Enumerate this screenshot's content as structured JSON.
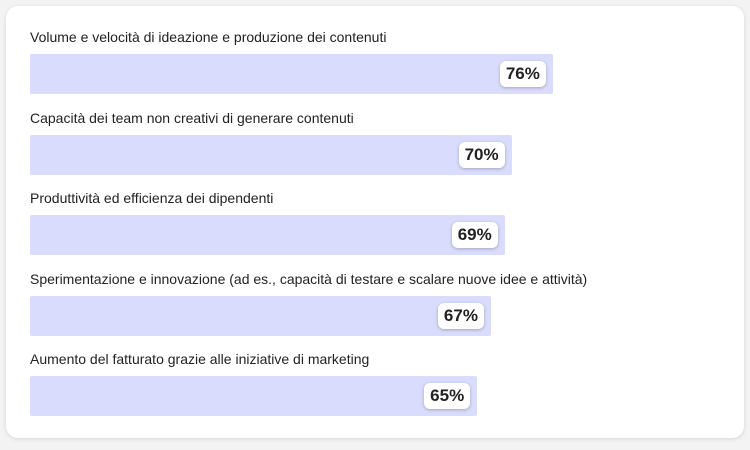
{
  "chart_data": {
    "type": "bar",
    "orientation": "horizontal",
    "categories": [
      "Volume e velocità di ideazione e produzione dei contenuti",
      "Capacità dei team non creativi di generare contenuti",
      "Produttività ed efficienza dei dipendenti",
      "Sperimentazione e innovazione (ad es., capacità di testare e scalare nuove idee e attività)",
      "Aumento del fatturato grazie alle iniziative di marketing"
    ],
    "values": [
      76,
      70,
      69,
      67,
      65
    ],
    "value_labels": [
      "76%",
      "70%",
      "69%",
      "67%",
      "65%"
    ],
    "title": "",
    "xlabel": "",
    "ylabel": "",
    "xlim": [
      0,
      100
    ],
    "grid": false,
    "legend": "none"
  },
  "colors": {
    "bar": "#d9dcfc",
    "card_background": "#ffffff",
    "page_background": "#f3f3f3"
  }
}
